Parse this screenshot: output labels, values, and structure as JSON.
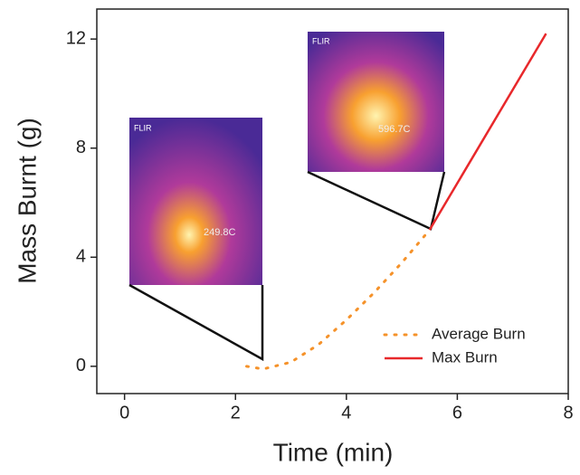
{
  "chart_data": {
    "type": "line",
    "x_label": "Time (min)",
    "y_label": "Mass Burnt (g)",
    "xlim": [
      -0.5,
      8
    ],
    "ylim": [
      -1,
      13.1
    ],
    "xticks": [
      0,
      2,
      4,
      6,
      8
    ],
    "yticks": [
      0,
      4,
      8,
      12
    ],
    "legend": "lower right",
    "series": [
      {
        "name": "Average Burn",
        "color": "#f5922a",
        "style": "dotted",
        "x": [
          2.2,
          2.5,
          3,
          3.5,
          4,
          4.5,
          5,
          5.5
        ],
        "values": [
          0,
          -0.1,
          0.15,
          0.8,
          1.7,
          2.7,
          3.8,
          5.0
        ]
      },
      {
        "name": "Max Burn",
        "color": "#e8282b",
        "style": "solid",
        "x": [
          5.5,
          7.6
        ],
        "values": [
          5.0,
          12.2
        ]
      }
    ],
    "annotations": [
      "FLIR",
      "249.8C",
      "FLIR",
      "596.7C"
    ]
  }
}
